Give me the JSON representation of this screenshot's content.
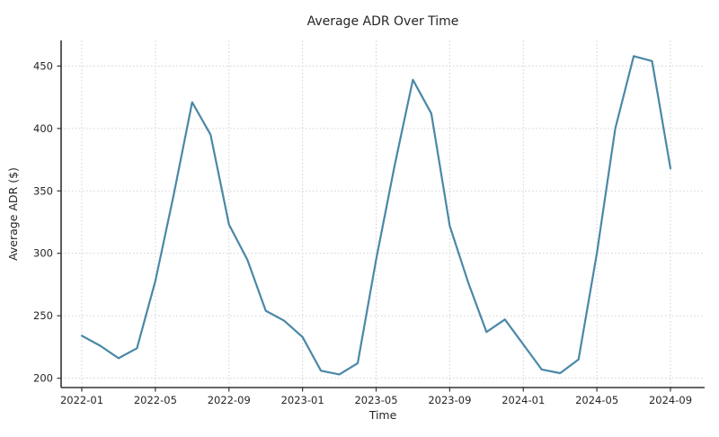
{
  "chart_data": {
    "type": "line",
    "title": "Average ADR Over Time",
    "xlabel": "Time",
    "ylabel": "Average ADR ($)",
    "x": [
      "2022-01",
      "2022-02",
      "2022-03",
      "2022-04",
      "2022-05",
      "2022-06",
      "2022-07",
      "2022-08",
      "2022-09",
      "2022-10",
      "2022-11",
      "2022-12",
      "2023-01",
      "2023-02",
      "2023-03",
      "2023-04",
      "2023-05",
      "2023-06",
      "2023-07",
      "2023-08",
      "2023-09",
      "2023-10",
      "2023-11",
      "2023-12",
      "2024-01",
      "2024-02",
      "2024-03",
      "2024-04",
      "2024-05",
      "2024-06",
      "2024-07",
      "2024-08",
      "2024-09"
    ],
    "values": [
      234,
      226,
      216,
      224,
      278,
      347,
      421,
      395,
      323,
      295,
      254,
      246,
      233,
      206,
      203,
      212,
      295,
      370,
      439,
      412,
      322,
      277,
      237,
      247,
      227,
      207,
      204,
      215,
      300,
      400,
      458,
      454,
      368
    ],
    "xtick_labels": [
      "2022-01",
      "2022-05",
      "2022-09",
      "2023-01",
      "2023-05",
      "2023-09",
      "2024-01",
      "2024-05",
      "2024-09"
    ],
    "yticks": [
      200,
      250,
      300,
      350,
      400,
      450
    ],
    "ylim": [
      192.5,
      470.5
    ],
    "grid": true,
    "grid_style": "dotted",
    "legend": false,
    "colors": {
      "line": "#4a88a6",
      "grid": "#cccccc",
      "spine": "#333333",
      "tick": "#333333",
      "text": "#262626"
    }
  }
}
